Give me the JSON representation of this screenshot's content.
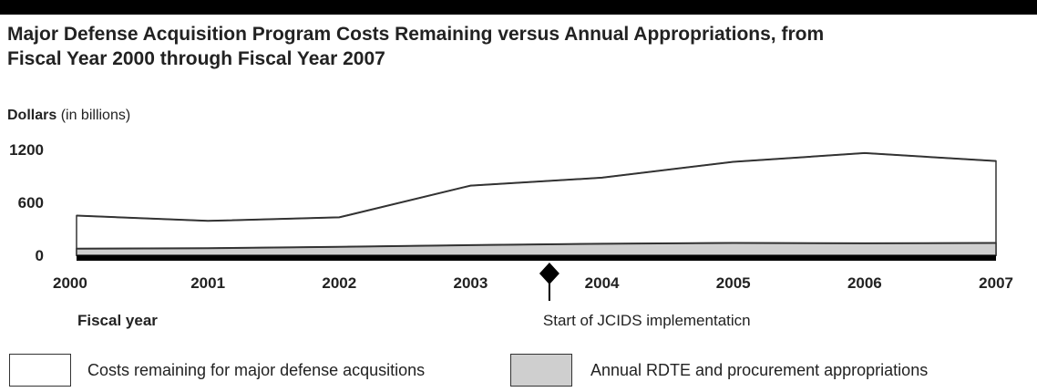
{
  "title_line1": "Major Defense Acquisition Program Costs Remaining versus Annual Appropriations, from",
  "title_line2": "Fiscal Year 2000 through Fiscal Year 2007",
  "yaxis_title_bold": "Dollars",
  "yaxis_title_unit": "(in billions)",
  "colors": {
    "costs_fill": "#ffffff",
    "appropriations_fill": "#cfcfcf",
    "line": "#333333",
    "marker": "#000000"
  },
  "chart_data": {
    "type": "area",
    "x": [
      2000,
      2001,
      2002,
      2003,
      2004,
      2005,
      2006,
      2007
    ],
    "x_tick_labels": [
      "2000",
      "2001",
      "2002",
      "2003",
      "2004",
      "2005",
      "2006",
      "2007"
    ],
    "y_ticks": [
      1200,
      600,
      0
    ],
    "y_tick_labels": [
      "1200",
      "600",
      "0"
    ],
    "ylim": [
      0,
      1260
    ],
    "xlabel": "Fiscal year",
    "ylabel": "Dollars (in billions)",
    "grid": false,
    "series": [
      {
        "name": "Costs remaining for major defense acqusitions",
        "values": [
          450,
          390,
          430,
          790,
          880,
          1060,
          1160,
          1070
        ]
      },
      {
        "name": "Annual RDTE and procurement appropriations",
        "values": [
          75,
          80,
          95,
          115,
          130,
          140,
          135,
          140
        ]
      }
    ],
    "annotation": {
      "x": 2003.6,
      "label": "Start of JCIDS implementaticn"
    },
    "legend_position": "bottom"
  },
  "legend": [
    {
      "label": "Costs remaining for major defense acqusitions",
      "swatch": "#ffffff"
    },
    {
      "label": "Annual RDTE and procurement appropriations",
      "swatch": "#cfcfcf"
    }
  ]
}
